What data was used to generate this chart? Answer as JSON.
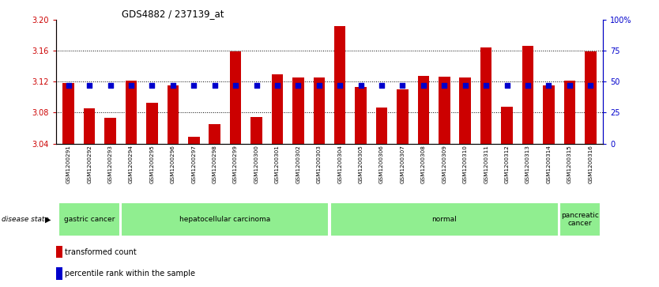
{
  "title": "GDS4882 / 237139_at",
  "samples": [
    "GSM1200291",
    "GSM1200292",
    "GSM1200293",
    "GSM1200294",
    "GSM1200295",
    "GSM1200296",
    "GSM1200297",
    "GSM1200298",
    "GSM1200299",
    "GSM1200300",
    "GSM1200301",
    "GSM1200302",
    "GSM1200303",
    "GSM1200304",
    "GSM1200305",
    "GSM1200306",
    "GSM1200307",
    "GSM1200308",
    "GSM1200309",
    "GSM1200310",
    "GSM1200311",
    "GSM1200312",
    "GSM1200313",
    "GSM1200314",
    "GSM1200315",
    "GSM1200316"
  ],
  "red_values": [
    3.118,
    3.086,
    3.073,
    3.121,
    3.093,
    3.115,
    3.049,
    3.065,
    3.159,
    3.074,
    3.13,
    3.126,
    3.126,
    3.192,
    3.113,
    3.087,
    3.11,
    3.128,
    3.127,
    3.126,
    3.165,
    3.088,
    3.167,
    3.115,
    3.122,
    3.159
  ],
  "blue_pct": [
    47,
    47,
    47,
    47,
    47,
    47,
    47,
    47,
    47,
    47,
    47,
    47,
    47,
    47,
    47,
    47,
    47,
    47,
    47,
    47,
    47,
    47,
    47,
    47,
    47,
    47
  ],
  "ylim_left": [
    3.04,
    3.2
  ],
  "ylim_right": [
    0,
    100
  ],
  "yticks_left": [
    3.04,
    3.08,
    3.12,
    3.16,
    3.2
  ],
  "yticks_right": [
    0,
    25,
    50,
    75,
    100
  ],
  "bar_color": "#CC0000",
  "blue_color": "#0000CC",
  "grid_lines": [
    3.08,
    3.12,
    3.16
  ],
  "disease_groups": [
    {
      "label": "gastric cancer",
      "start": 0,
      "end": 3
    },
    {
      "label": "hepatocellular carcinoma",
      "start": 3,
      "end": 13
    },
    {
      "label": "normal",
      "start": 13,
      "end": 24
    },
    {
      "label": "pancreatic\ncancer",
      "start": 24,
      "end": 26
    }
  ],
  "label_red_color": "#CC0000",
  "label_blue_color": "#0000CC",
  "tick_bg_color": "#cccccc",
  "group_bg_color": "#90EE90",
  "fig_width": 8.34,
  "fig_height": 3.63,
  "dpi": 100
}
